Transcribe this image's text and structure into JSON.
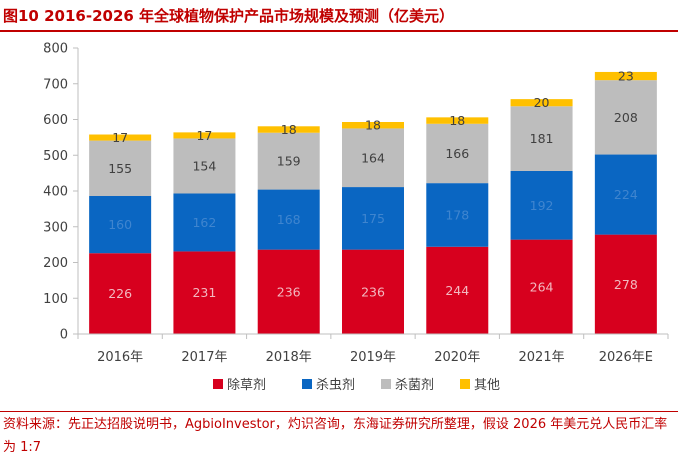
{
  "header": {
    "title": "图10  2016-2026 年全球植物保护产品市场规模及预测（亿美元）"
  },
  "footer": {
    "source": "资料来源：先正达招股说明书，AgbioInvestor，灼识咨询，东海证券研究所整理，假设 2026 年美元兑人民币汇率为 1:7"
  },
  "chart_data": {
    "type": "bar",
    "stacked": true,
    "categories": [
      "2016年",
      "2017年",
      "2018年",
      "2019年",
      "2020年",
      "2021年",
      "2026年E"
    ],
    "series": [
      {
        "name": "除草剂",
        "color": "#d7001e",
        "label_color": "#f2b8c0",
        "values": [
          226,
          231,
          236,
          236,
          244,
          264,
          278
        ]
      },
      {
        "name": "杀虫剂",
        "color": "#0a66c2",
        "label_color": "#3f85cf",
        "values": [
          160,
          162,
          168,
          175,
          178,
          192,
          224
        ]
      },
      {
        "name": "杀菌剂",
        "color": "#bdbdbd",
        "label_color": "#404040",
        "values": [
          155,
          154,
          159,
          164,
          166,
          181,
          208
        ]
      },
      {
        "name": "其他",
        "color": "#ffc000",
        "label_color": "#404040",
        "values": [
          17,
          17,
          18,
          18,
          18,
          20,
          23
        ]
      }
    ],
    "y_ticks": [
      0,
      100,
      200,
      300,
      400,
      500,
      600,
      700,
      800
    ],
    "ylim": [
      0,
      800
    ],
    "grid": false,
    "legend_position": "bottom"
  }
}
